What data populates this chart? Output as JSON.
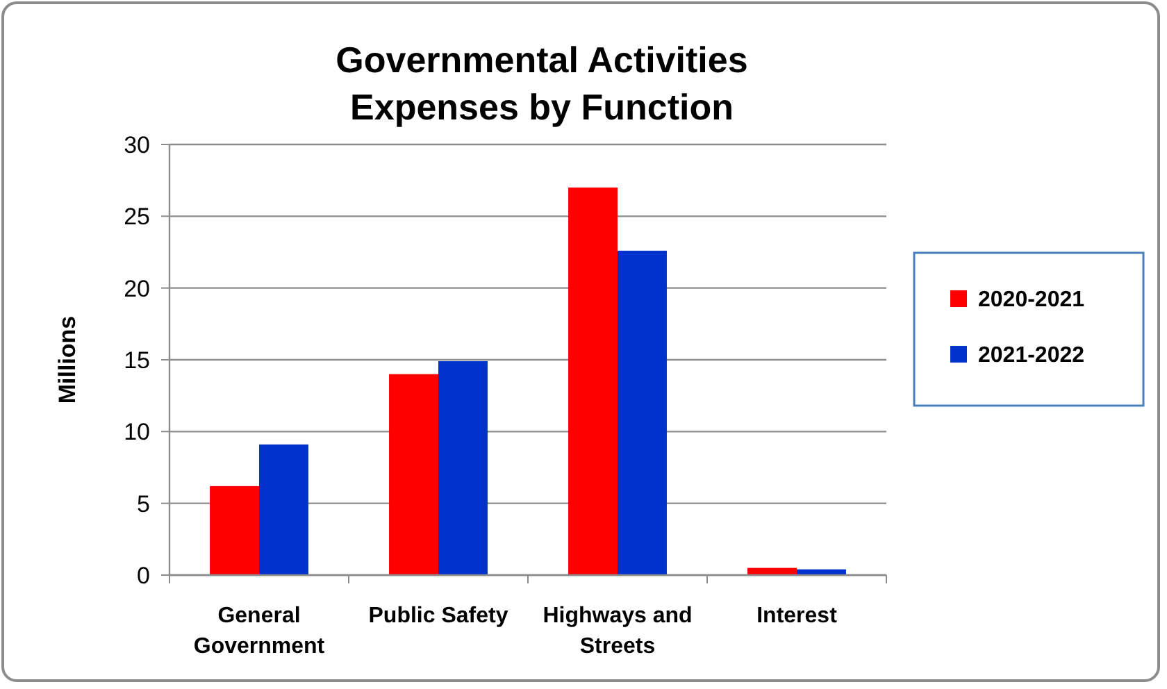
{
  "chart_data": {
    "type": "bar",
    "title": "Governmental Activities\nExpenses by Function",
    "ylabel": "Millions",
    "categories": [
      "General Government",
      "Public Safety",
      "Highways and Streets",
      "Interest"
    ],
    "series": [
      {
        "name": "2020-2021",
        "color": "#ff0000",
        "values": [
          6.2,
          14.0,
          27.0,
          0.5
        ]
      },
      {
        "name": "2021-2022",
        "color": "#0033cc",
        "values": [
          9.1,
          14.9,
          22.6,
          0.4
        ]
      }
    ],
    "ylim": [
      0,
      30
    ],
    "yticks": [
      0,
      5,
      10,
      15,
      20,
      25,
      30
    ],
    "grid": "y",
    "legend": "right"
  }
}
